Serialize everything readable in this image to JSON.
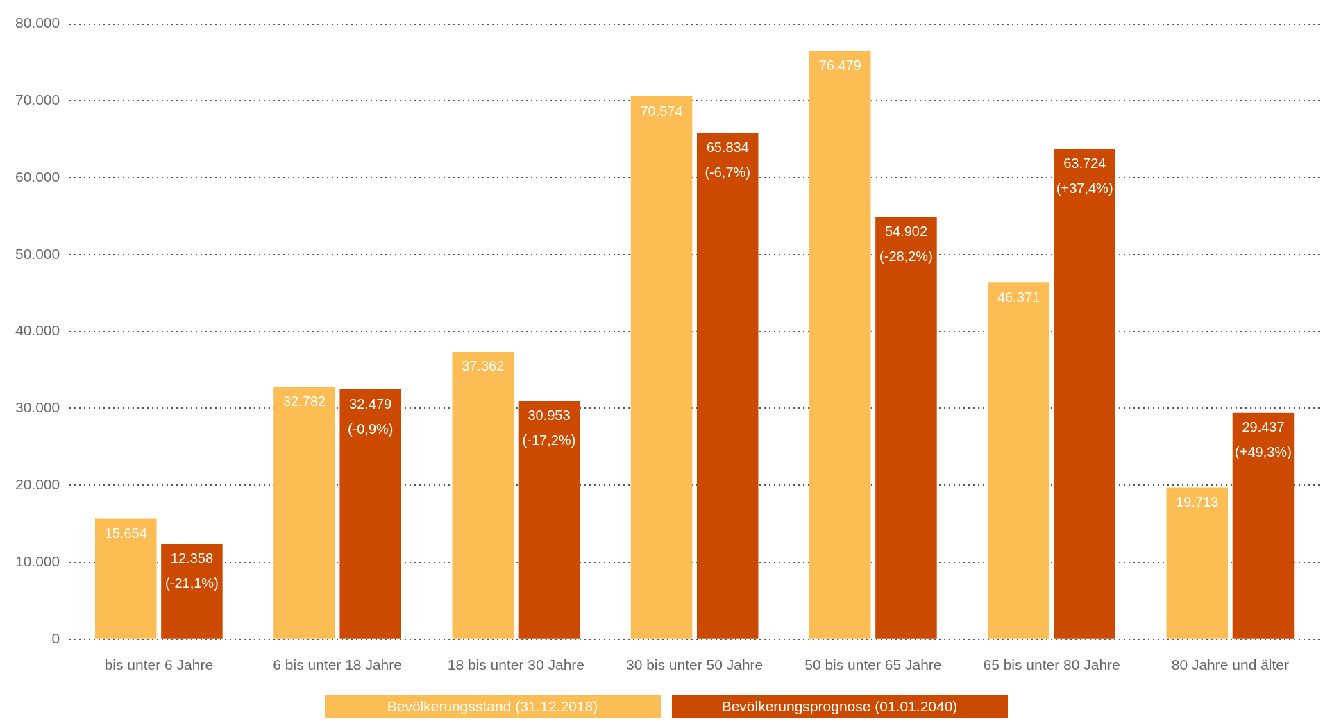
{
  "chart_data": {
    "type": "bar",
    "categories": [
      "bis unter 6 Jahre",
      "6 bis unter 18 Jahre",
      "18 bis unter 30 Jahre",
      "30 bis unter 50 Jahre",
      "50 bis unter 65 Jahre",
      "65 bis unter 80 Jahre",
      "80 Jahre und älter"
    ],
    "series": [
      {
        "name": "Bevölkerungsstand (31.12.2018)",
        "color": "#fdbd55",
        "values": [
          15654,
          32782,
          37362,
          70574,
          76479,
          46371,
          19713
        ],
        "value_labels": [
          "15.654",
          "32.782",
          "37.362",
          "70.574",
          "76.479",
          "46.371",
          "19.713"
        ]
      },
      {
        "name": "Bevölkerungsprognose (01.01.2040)",
        "color": "#cc4a00",
        "values": [
          12358,
          32479,
          30953,
          65834,
          54902,
          63724,
          29437
        ],
        "value_labels": [
          "12.358 (-21,1%)",
          "32.479 (-0,9%)",
          "30.953 (-17,2%)",
          "65.834 (-6,7%)",
          "54.902 (-28,2%)",
          "63.724 (+37,4%)",
          "29.437 (+49,3%)"
        ]
      }
    ],
    "ylim": [
      0,
      80000
    ],
    "yticks": [
      {
        "value": 0,
        "label": "0"
      },
      {
        "value": 10000,
        "label": "10.000"
      },
      {
        "value": 20000,
        "label": "20.000"
      },
      {
        "value": 30000,
        "label": "30.000"
      },
      {
        "value": 40000,
        "label": "40.000"
      },
      {
        "value": 50000,
        "label": "50.000"
      },
      {
        "value": 60000,
        "label": "60.000"
      },
      {
        "value": 70000,
        "label": "70.000"
      },
      {
        "value": 80000,
        "label": "80.000"
      }
    ],
    "grid": "y",
    "legend": "bottom"
  }
}
